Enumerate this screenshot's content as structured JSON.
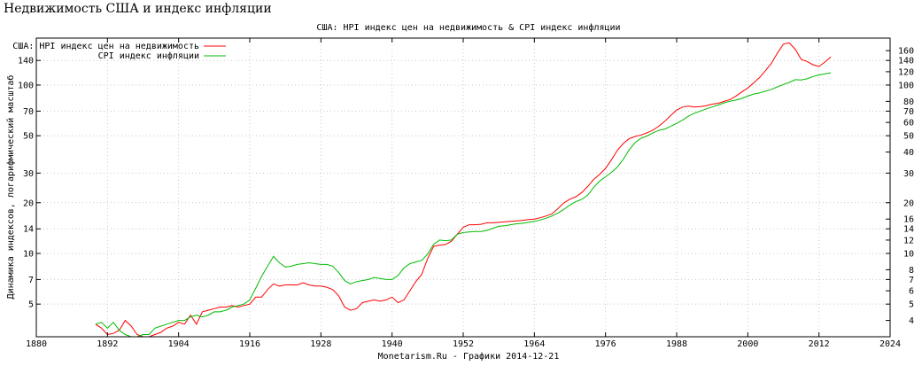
{
  "page": {
    "title": "Недвижимость США и индекс инфляции"
  },
  "chart_data": {
    "type": "line",
    "title": "США: HPI индекс цен на недвижимость & CPI индекс инфляции",
    "xlabel": "Monetarism.Ru - Графики 2014-12-21",
    "ylabel": "Динамика индексов, логарифмический масштаб",
    "xlim": [
      1880,
      2024
    ],
    "x_ticks": [
      1880,
      1892,
      1904,
      1916,
      1928,
      1940,
      1952,
      1964,
      1976,
      1988,
      2000,
      2012,
      2024
    ],
    "y_scale": "log",
    "ylim": [
      3.2,
      190
    ],
    "y_ticks_left": [
      5,
      7,
      10,
      14,
      20,
      30,
      50,
      70,
      100,
      140
    ],
    "y_ticks_right": [
      4,
      5,
      6,
      7,
      8,
      10,
      12,
      14,
      16,
      20,
      30,
      40,
      50,
      60,
      70,
      80,
      100,
      120,
      140,
      160
    ],
    "grid": true,
    "legend_position": "top-left",
    "series": [
      {
        "name": "США: HPI индекс цен на недвижимость",
        "color": "#ff0000",
        "x": [
          1890,
          1891,
          1892,
          1893,
          1894,
          1895,
          1896,
          1897,
          1898,
          1899,
          1900,
          1901,
          1902,
          1903,
          1904,
          1905,
          1906,
          1907,
          1908,
          1909,
          1910,
          1911,
          1912,
          1913,
          1914,
          1915,
          1916,
          1917,
          1918,
          1919,
          1920,
          1921,
          1922,
          1923,
          1924,
          1925,
          1926,
          1927,
          1928,
          1929,
          1930,
          1931,
          1932,
          1933,
          1934,
          1935,
          1936,
          1937,
          1938,
          1939,
          1940,
          1941,
          1942,
          1943,
          1944,
          1945,
          1946,
          1947,
          1948,
          1949,
          1950,
          1951,
          1952,
          1953,
          1954,
          1955,
          1956,
          1957,
          1958,
          1959,
          1960,
          1961,
          1962,
          1963,
          1964,
          1965,
          1966,
          1967,
          1968,
          1969,
          1970,
          1971,
          1972,
          1973,
          1974,
          1975,
          1976,
          1977,
          1978,
          1979,
          1980,
          1981,
          1982,
          1983,
          1984,
          1985,
          1986,
          1987,
          1988,
          1989,
          1990,
          1991,
          1992,
          1993,
          1994,
          1995,
          1996,
          1997,
          1998,
          1999,
          2000,
          2001,
          2002,
          2003,
          2004,
          2005,
          2006,
          2007,
          2008,
          2009,
          2010,
          2011,
          2012,
          2013,
          2014
        ],
        "values": [
          3.8,
          3.6,
          3.3,
          3.35,
          3.5,
          4.0,
          3.7,
          3.3,
          3.2,
          3.2,
          3.3,
          3.4,
          3.6,
          3.7,
          3.9,
          3.8,
          4.3,
          3.8,
          4.5,
          4.6,
          4.7,
          4.8,
          4.8,
          4.9,
          4.8,
          4.9,
          5.0,
          5.5,
          5.5,
          6.1,
          6.6,
          6.4,
          6.5,
          6.5,
          6.5,
          6.7,
          6.5,
          6.4,
          6.4,
          6.3,
          6.1,
          5.6,
          4.8,
          4.6,
          4.7,
          5.1,
          5.2,
          5.3,
          5.2,
          5.3,
          5.5,
          5.1,
          5.3,
          6.0,
          6.8,
          7.5,
          9.3,
          11.0,
          11.2,
          11.3,
          11.8,
          13.0,
          14.3,
          14.8,
          14.8,
          14.9,
          15.2,
          15.2,
          15.3,
          15.4,
          15.5,
          15.6,
          15.7,
          15.9,
          16.0,
          16.3,
          16.7,
          17.2,
          18.5,
          20.0,
          21.0,
          21.7,
          23.0,
          25.0,
          27.5,
          29.5,
          32.0,
          36.0,
          41.0,
          45.0,
          48.0,
          49.5,
          50.5,
          52.0,
          54.0,
          57.0,
          61.0,
          66.0,
          71.0,
          74.0,
          75.0,
          74.0,
          74.5,
          75.5,
          77.0,
          78.0,
          80.0,
          82.0,
          86.0,
          91.0,
          96.0,
          103.0,
          111.0,
          122.0,
          135.0,
          155.0,
          175.0,
          178.0,
          163.0,
          142.0,
          138.0,
          132.0,
          129.0,
          137.0,
          147.0
        ]
      },
      {
        "name": "CPI индекс инфляции",
        "color": "#00bb00",
        "x": [
          1890,
          1891,
          1892,
          1893,
          1894,
          1895,
          1896,
          1897,
          1898,
          1899,
          1900,
          1901,
          1902,
          1903,
          1904,
          1905,
          1906,
          1907,
          1908,
          1909,
          1910,
          1911,
          1912,
          1913,
          1914,
          1915,
          1916,
          1917,
          1918,
          1919,
          1920,
          1921,
          1922,
          1923,
          1924,
          1925,
          1926,
          1927,
          1928,
          1929,
          1930,
          1931,
          1932,
          1933,
          1934,
          1935,
          1936,
          1937,
          1938,
          1939,
          1940,
          1941,
          1942,
          1943,
          1944,
          1945,
          1946,
          1947,
          1948,
          1949,
          1950,
          1951,
          1952,
          1953,
          1954,
          1955,
          1956,
          1957,
          1958,
          1959,
          1960,
          1961,
          1962,
          1963,
          1964,
          1965,
          1966,
          1967,
          1968,
          1969,
          1970,
          1971,
          1972,
          1973,
          1974,
          1975,
          1976,
          1977,
          1978,
          1979,
          1980,
          1981,
          1982,
          1983,
          1984,
          1985,
          1986,
          1987,
          1988,
          1989,
          1990,
          1991,
          1992,
          1993,
          1994,
          1995,
          1996,
          1997,
          1998,
          1999,
          2000,
          2001,
          2002,
          2003,
          2004,
          2005,
          2006,
          2007,
          2008,
          2009,
          2010,
          2011,
          2012,
          2013,
          2014
        ],
        "values": [
          3.8,
          3.9,
          3.6,
          3.9,
          3.5,
          3.3,
          3.2,
          3.2,
          3.3,
          3.3,
          3.6,
          3.7,
          3.8,
          3.9,
          4.0,
          4.0,
          4.2,
          4.3,
          4.2,
          4.3,
          4.5,
          4.5,
          4.6,
          4.8,
          4.9,
          5.0,
          5.3,
          6.2,
          7.3,
          8.4,
          9.6,
          8.8,
          8.3,
          8.4,
          8.6,
          8.7,
          8.8,
          8.7,
          8.6,
          8.6,
          8.4,
          7.7,
          6.9,
          6.6,
          6.8,
          6.9,
          7.0,
          7.2,
          7.1,
          7.0,
          7.0,
          7.4,
          8.2,
          8.7,
          8.9,
          9.1,
          9.9,
          11.3,
          12.0,
          11.9,
          12.0,
          13.0,
          13.3,
          13.4,
          13.5,
          13.5,
          13.7,
          14.1,
          14.5,
          14.6,
          14.8,
          15.0,
          15.1,
          15.3,
          15.5,
          15.8,
          16.2,
          16.7,
          17.4,
          18.3,
          19.4,
          20.3,
          20.9,
          22.2,
          24.7,
          26.9,
          28.5,
          30.3,
          32.6,
          36.3,
          41.2,
          45.5,
          48.3,
          49.8,
          52.0,
          53.8,
          54.8,
          56.8,
          59.2,
          62.0,
          65.3,
          68.1,
          70.1,
          72.2,
          74.1,
          76.1,
          78.4,
          80.2,
          81.4,
          83.2,
          86.0,
          88.4,
          89.8,
          91.9,
          94.3,
          97.6,
          100.8,
          103.6,
          107.6,
          107.2,
          109.0,
          112.4,
          114.7,
          116.4,
          118.2
        ]
      }
    ]
  }
}
